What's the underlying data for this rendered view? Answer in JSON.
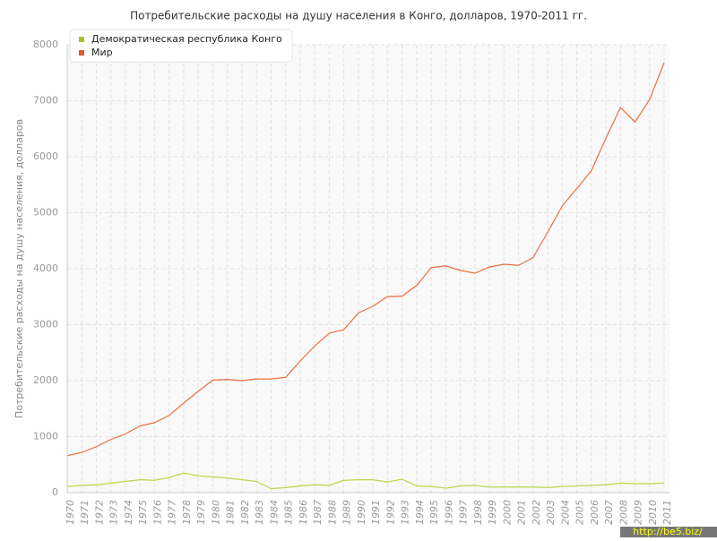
{
  "chart_data": {
    "type": "line",
    "title": "Потребительские расходы на душу населения в Конго, долларов, 1970-2011 гг.",
    "y_label": "Потребительские расходы на душу населения, долларов",
    "categories": [
      "1970",
      "1971",
      "1972",
      "1973",
      "1974",
      "1975",
      "1976",
      "1977",
      "1978",
      "1979",
      "1980",
      "1981",
      "1982",
      "1983",
      "1984",
      "1985",
      "1986",
      "1987",
      "1988",
      "1989",
      "1990",
      "1991",
      "1992",
      "1993",
      "1994",
      "1995",
      "1996",
      "1997",
      "1998",
      "1999",
      "2000",
      "2001",
      "2002",
      "2003",
      "2004",
      "2005",
      "2006",
      "2007",
      "2008",
      "2009",
      "2010",
      "2011"
    ],
    "series": [
      {
        "name": "Демократическая республика Конго",
        "color": "#b8d94a",
        "legend_color": "#a0c81e",
        "values": [
          110,
          130,
          140,
          170,
          200,
          230,
          220,
          270,
          350,
          300,
          280,
          260,
          230,
          200,
          70,
          90,
          120,
          140,
          130,
          220,
          230,
          230,
          190,
          240,
          120,
          110,
          80,
          120,
          130,
          100,
          100,
          100,
          100,
          90,
          110,
          120,
          130,
          140,
          170,
          160,
          160,
          170
        ]
      },
      {
        "name": "Мир",
        "color": "#e8703f",
        "legend_color": "#e0582a",
        "values": [
          660,
          720,
          820,
          950,
          1050,
          1190,
          1250,
          1380,
          1600,
          1810,
          2010,
          2020,
          2000,
          2030,
          2030,
          2060,
          2350,
          2620,
          2850,
          2910,
          3210,
          3330,
          3500,
          3510,
          3700,
          4020,
          4050,
          3970,
          3920,
          4030,
          4080,
          4060,
          4200,
          4650,
          5120,
          5430,
          5750,
          6330,
          6880,
          6620,
          7020,
          7680
        ]
      }
    ],
    "ylim": [
      0,
      8000
    ],
    "yticks": [
      0,
      1000,
      2000,
      3000,
      4000,
      5000,
      6000,
      7000,
      8000
    ],
    "grid": true,
    "watermark": "http://be5.biz/"
  }
}
